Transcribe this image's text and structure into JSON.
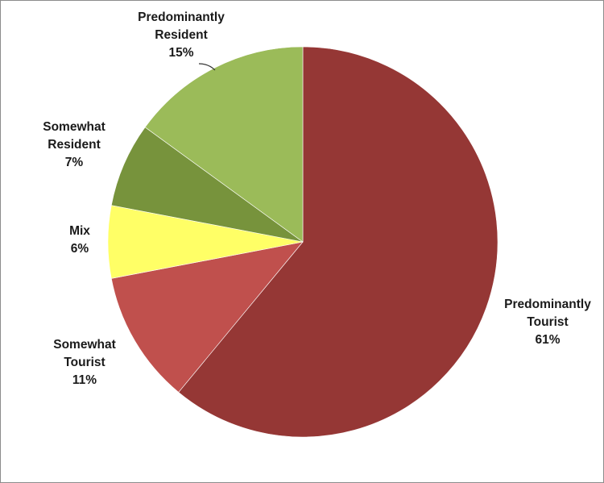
{
  "chart_data": {
    "type": "pie",
    "title": "",
    "start_angle_deg": 0,
    "direction": "clockwise",
    "slices": [
      {
        "label": [
          "Predominantly",
          "Tourist"
        ],
        "pct_text": "61%",
        "value": 61,
        "color": "#953735"
      },
      {
        "label": [
          "Somewhat",
          "Tourist"
        ],
        "pct_text": "11%",
        "value": 11,
        "color": "#c0504d"
      },
      {
        "label": [
          "Mix"
        ],
        "pct_text": "6%",
        "value": 6,
        "color": "#ffff66"
      },
      {
        "label": [
          "Somewhat",
          "Resident"
        ],
        "pct_text": "7%",
        "value": 7,
        "color": "#77933c"
      },
      {
        "label": [
          "Predominantly",
          "Resident"
        ],
        "pct_text": "15%",
        "value": 15,
        "color": "#9bbb59"
      }
    ]
  }
}
